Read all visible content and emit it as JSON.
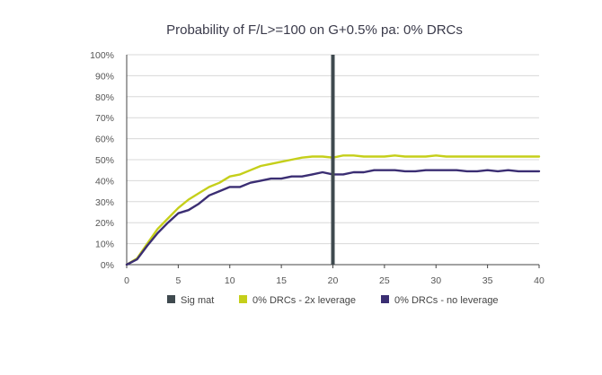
{
  "chart_data": {
    "type": "line",
    "title": "Probability of F/L>=100 on G+0.5% pa: 0% DRCs",
    "xlabel": "",
    "ylabel": "",
    "xlim": [
      0,
      40
    ],
    "ylim": [
      0,
      100
    ],
    "x_ticks": [
      "0",
      "5",
      "10",
      "15",
      "20",
      "25",
      "30",
      "35",
      "40"
    ],
    "y_ticks": [
      "0%",
      "10%",
      "20%",
      "30%",
      "40%",
      "50%",
      "60%",
      "70%",
      "80%",
      "90%",
      "100%"
    ],
    "grid": "horizontal",
    "legend_position": "bottom",
    "vertical_marker": {
      "name": "Sig mat",
      "x": 20,
      "color": "#3f4a4f"
    },
    "series": [
      {
        "name": "0% DRCs - 2x leverage",
        "color": "#c5cf1a",
        "x": [
          0,
          1,
          2,
          3,
          4,
          5,
          6,
          7,
          8,
          9,
          10,
          11,
          12,
          13,
          14,
          15,
          16,
          17,
          18,
          19,
          20,
          21,
          22,
          23,
          24,
          25,
          26,
          27,
          28,
          29,
          30,
          31,
          32,
          33,
          34,
          35,
          36,
          37,
          38,
          39,
          40
        ],
        "values": [
          0,
          3,
          10,
          17,
          22,
          27,
          31,
          34,
          37,
          39,
          42,
          43,
          45,
          47,
          48,
          49,
          50,
          51,
          51.5,
          51.5,
          51,
          52,
          52,
          51.5,
          51.5,
          51.5,
          52,
          51.5,
          51.5,
          51.5,
          52,
          51.5,
          51.5,
          51.5,
          51.5,
          51.5,
          51.5,
          51.5,
          51.5,
          51.5,
          51.5
        ]
      },
      {
        "name": "0% DRCs - no leverage",
        "color": "#3b2e73",
        "x": [
          0,
          1,
          2,
          3,
          4,
          5,
          6,
          7,
          8,
          9,
          10,
          11,
          12,
          13,
          14,
          15,
          16,
          17,
          18,
          19,
          20,
          21,
          22,
          23,
          24,
          25,
          26,
          27,
          28,
          29,
          30,
          31,
          32,
          33,
          34,
          35,
          36,
          37,
          38,
          39,
          40
        ],
        "values": [
          0,
          2.5,
          9,
          15,
          20,
          24.5,
          26,
          29,
          33,
          35,
          37,
          37,
          39,
          40,
          41,
          41,
          42,
          42,
          43,
          44,
          43,
          43,
          44,
          44,
          45,
          45,
          45,
          44.5,
          44.5,
          45,
          45,
          45,
          45,
          44.5,
          44.5,
          45,
          44.5,
          45,
          44.5,
          44.5,
          44.5
        ]
      }
    ]
  },
  "legend": {
    "items": [
      {
        "label": "Sig mat",
        "color": "#3f4a4f"
      },
      {
        "label": "0% DRCs - 2x leverage",
        "color": "#c5cf1a"
      },
      {
        "label": "0% DRCs - no leverage",
        "color": "#3b2e73"
      }
    ]
  }
}
